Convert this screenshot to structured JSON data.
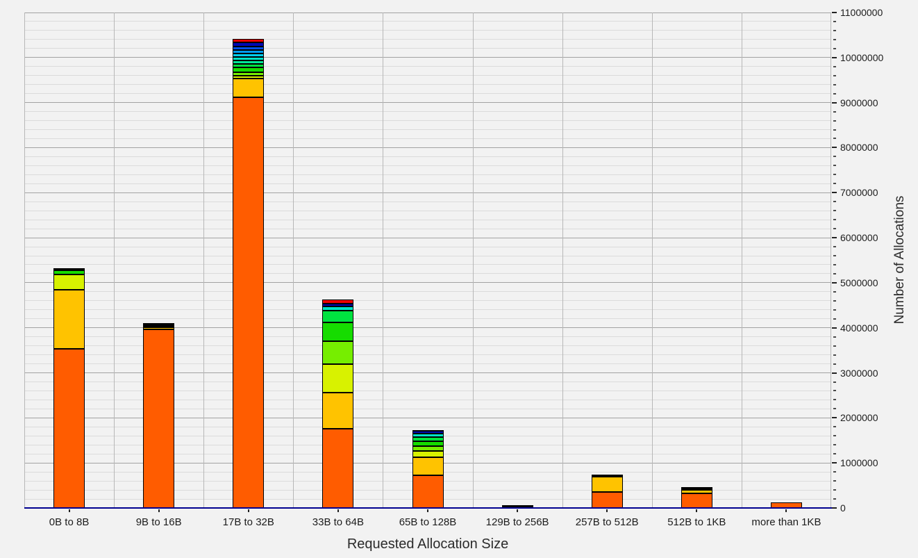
{
  "chart_data": {
    "type": "bar",
    "stacked": true,
    "title": "",
    "xlabel": "Requested Allocation Size",
    "ylabel": "Number of Allocations",
    "legend": "none",
    "grid": {
      "horizontal_major": true,
      "horizontal_minor": true,
      "vertical_column_separators": true
    },
    "ylim": [
      0,
      11000000
    ],
    "y_major_step": 1000000,
    "y_minor_step": 200000,
    "y_tick_labels": [
      "0",
      "1000000",
      "2000000",
      "3000000",
      "4000000",
      "5000000",
      "6000000",
      "7000000",
      "8000000",
      "9000000",
      "10000000",
      "11000000"
    ],
    "axis_line_color": "#000090",
    "bar_outline_color": "#000000",
    "categories": [
      "0B to 8B",
      "9B to 16B",
      "17B to 32B",
      "33B to 64B",
      "65B to 128B",
      "129B to 256B",
      "257B to 512B",
      "512B to 1KB",
      "more than 1KB"
    ],
    "series": [
      {
        "name": "orange",
        "color": "#FF5C00",
        "values": [
          3530000,
          3960000,
          9120000,
          1760000,
          720000,
          0,
          360000,
          330000,
          130000
        ]
      },
      {
        "name": "amber",
        "color": "#FFC300",
        "values": [
          1320000,
          50000,
          410000,
          800000,
          400000,
          0,
          330000,
          70000,
          0
        ]
      },
      {
        "name": "chartreuse",
        "color": "#D8F200",
        "values": [
          340000,
          0,
          60000,
          630000,
          140000,
          0,
          0,
          0,
          0
        ]
      },
      {
        "name": "lawn-green",
        "color": "#76EE00",
        "values": [
          0,
          0,
          80000,
          510000,
          110000,
          0,
          0,
          0,
          0
        ]
      },
      {
        "name": "green",
        "color": "#16DC00",
        "values": [
          80000,
          30000,
          110000,
          420000,
          110000,
          0,
          0,
          0,
          0
        ]
      },
      {
        "name": "spring-green",
        "color": "#00E340",
        "values": [
          0,
          0,
          80000,
          260000,
          90000,
          0,
          0,
          0,
          0
        ]
      },
      {
        "name": "mint-green",
        "color": "#00E896",
        "values": [
          0,
          0,
          70000,
          0,
          0,
          0,
          0,
          0,
          0
        ]
      },
      {
        "name": "turquoise",
        "color": "#00E3C8",
        "values": [
          0,
          0,
          80000,
          100000,
          80000,
          0,
          0,
          0,
          0
        ]
      },
      {
        "name": "cyan",
        "color": "#00CFEF",
        "values": [
          0,
          0,
          80000,
          0,
          0,
          0,
          0,
          0,
          0
        ]
      },
      {
        "name": "sky-blue",
        "color": "#009CF2",
        "values": [
          0,
          0,
          80000,
          0,
          0,
          0,
          0,
          0,
          0
        ]
      },
      {
        "name": "blue",
        "color": "#0050E8",
        "values": [
          0,
          0,
          80000,
          0,
          0,
          0,
          0,
          0,
          0
        ]
      },
      {
        "name": "navy",
        "color": "#0009B4",
        "values": [
          0,
          0,
          80000,
          60000,
          60000,
          0,
          0,
          0,
          0
        ]
      },
      {
        "name": "red",
        "color": "#EE0000",
        "values": [
          0,
          0,
          90000,
          85000,
          0,
          0,
          0,
          0,
          0
        ]
      },
      {
        "name": "black-other",
        "color": "#000000",
        "values": [
          60000,
          60000,
          0,
          0,
          20000,
          60000,
          50000,
          60000,
          0
        ]
      }
    ]
  }
}
